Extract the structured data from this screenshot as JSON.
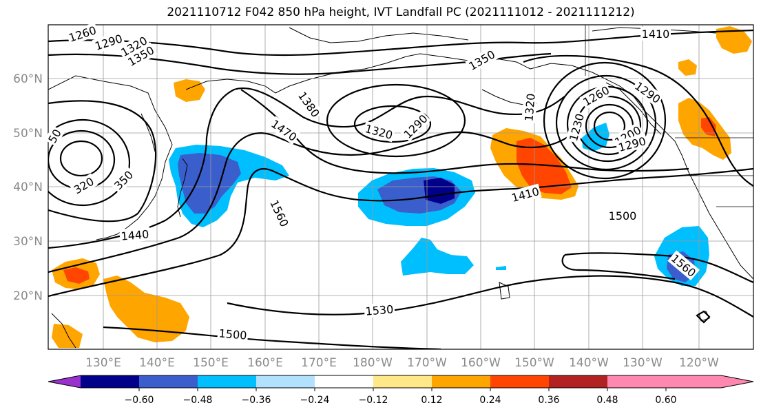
{
  "title": "2021110712 F042 850 hPa height, IVT Landfall PC (2021111012 - 2021111212)",
  "lat_labels": [
    "60°N",
    "50°N",
    "40°N",
    "30°N",
    "20°N"
  ],
  "lon_labels": [
    "130°E",
    "140°E",
    "150°E",
    "160°E",
    "170°E",
    "180°W",
    "170°W",
    "160°W",
    "150°W",
    "140°W",
    "130°W",
    "120°W"
  ],
  "contour_labels": [
    "1260",
    "1290",
    "1320",
    "1350",
    "1350",
    "1380",
    "1470",
    "1320",
    "1290",
    "1320",
    "1260",
    "1290",
    "1230",
    "1200",
    "1290",
    "1410",
    "1410",
    "1500",
    "1560",
    "1560",
    "1440",
    "1530",
    "1500",
    "350",
    "320",
    "50"
  ],
  "colorbar": {
    "ticks": [
      "−0.60",
      "−0.48",
      "−0.36",
      "−0.24",
      "−0.12",
      "0.12",
      "0.24",
      "0.36",
      "0.48",
      "0.60"
    ],
    "colors": [
      "#9932cc",
      "#00008b",
      "#3a5fcd",
      "#00bfff",
      "#b2e1fd",
      "#ffffff",
      "#ffe888",
      "#ffa500",
      "#ff4500",
      "#b22222",
      "#ff88b0"
    ]
  }
}
